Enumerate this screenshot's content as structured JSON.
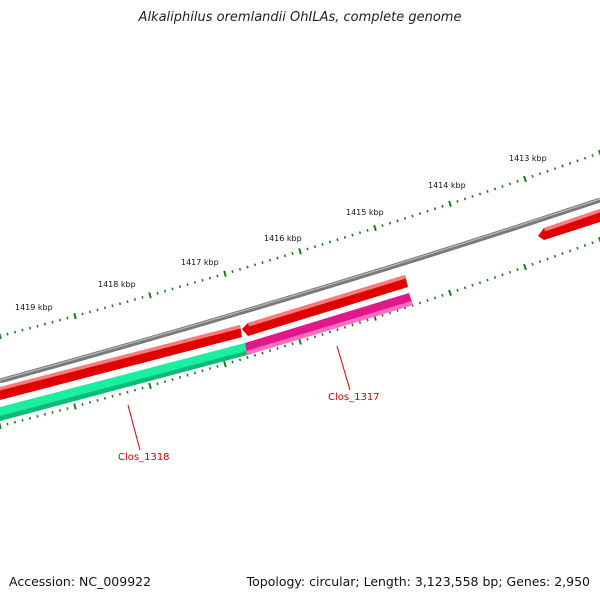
{
  "title": "Alkaliphilus oremlandii OhILAs, complete genome",
  "footer": {
    "accession": "Accession: NC_009922",
    "summary": "Topology: circular; Length: 3,123,558 bp; Genes: 2,950"
  },
  "colors": {
    "backbone": "#7a7a7a",
    "tick": "#1f7a1f",
    "forward_gene": "#e00000",
    "reverse_gene_green": "#18f0a0",
    "reverse_gene_pink": "#e0188a",
    "gene_label": "#cc0000"
  },
  "ticks": [
    {
      "label": "1413 kbp",
      "kbp": 1413
    },
    {
      "label": "1414 kbp",
      "kbp": 1414
    },
    {
      "label": "1415 kbp",
      "kbp": 1415
    },
    {
      "label": "1416 kbp",
      "kbp": 1416
    },
    {
      "label": "1417 kbp",
      "kbp": 1417
    },
    {
      "label": "1418 kbp",
      "kbp": 1418
    },
    {
      "label": "1419 kbp",
      "kbp": 1419
    }
  ],
  "genes": [
    {
      "name": "Clos_1317",
      "strand": "reverse",
      "color_key": "reverse_gene_pink"
    },
    {
      "name": "Clos_1318",
      "strand": "reverse",
      "color_key": "reverse_gene_green"
    }
  ]
}
